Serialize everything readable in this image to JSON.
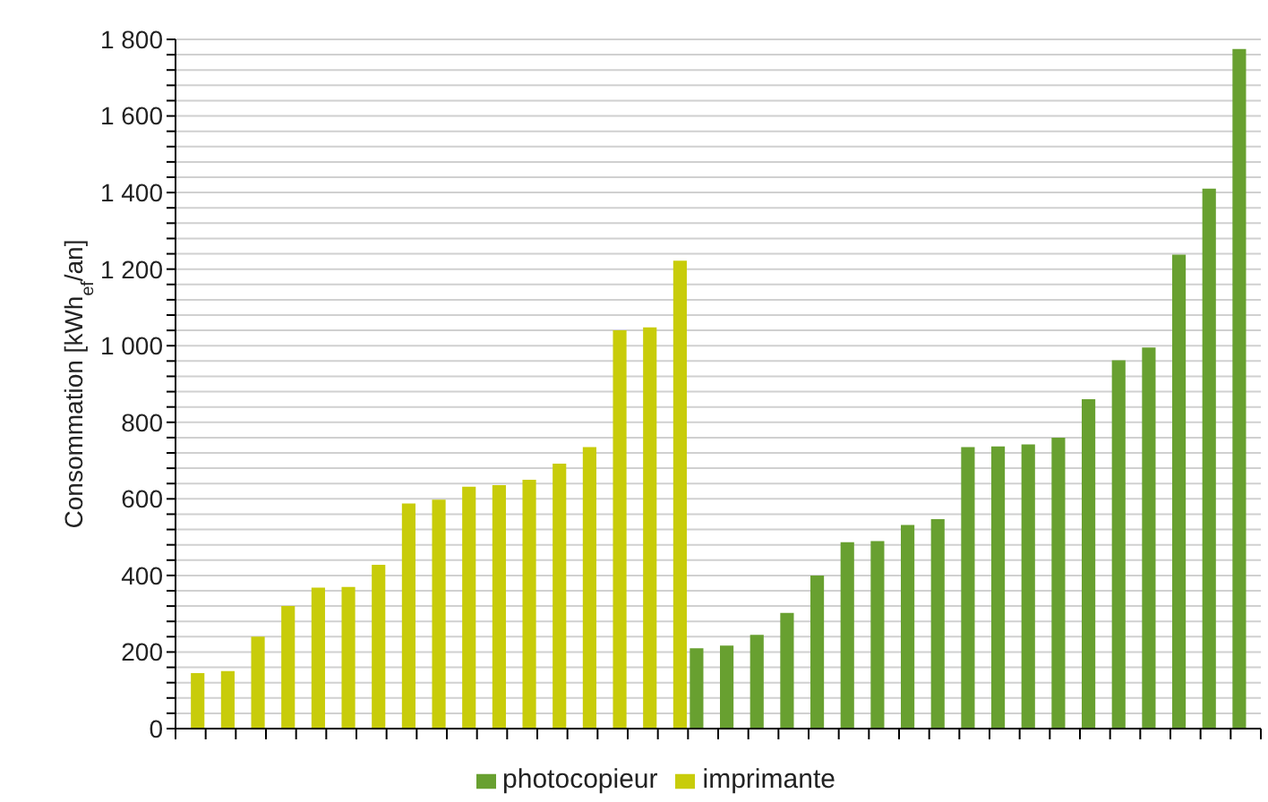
{
  "chart_data": {
    "type": "bar",
    "ylabel": "Consommation [kWh$_{ef}$/an]",
    "categories": [
      null,
      null,
      null,
      null,
      null,
      null,
      null,
      null,
      null,
      null,
      null,
      null,
      null,
      null,
      null,
      null,
      null,
      null,
      null,
      null,
      null,
      null,
      null,
      null,
      null,
      null,
      null,
      null,
      null,
      null,
      null,
      null,
      null,
      null,
      null,
      null
    ],
    "series": [
      {
        "name": "photocopieur",
        "color": "#68a030",
        "values": [
          null,
          null,
          null,
          null,
          null,
          null,
          null,
          null,
          null,
          null,
          null,
          null,
          null,
          null,
          null,
          null,
          null,
          210,
          217,
          245,
          302,
          400,
          487,
          490,
          532,
          547,
          735,
          737,
          742,
          760,
          860,
          962,
          995,
          1238,
          1410,
          1775
        ]
      },
      {
        "name": "imprimante",
        "color": "#c8cc0a",
        "values": [
          145,
          150,
          240,
          320,
          368,
          370,
          428,
          588,
          598,
          632,
          636,
          650,
          692,
          735,
          1040,
          1048,
          1222,
          null,
          null,
          null,
          null,
          null,
          null,
          null,
          null,
          null,
          null,
          null,
          null,
          null,
          null,
          null,
          null,
          null,
          null,
          null
        ]
      }
    ],
    "ylim": [
      0,
      1800
    ],
    "yticks": [
      0,
      {
        "value": 40,
        "label": null
      },
      {
        "value": 80,
        "label": null
      },
      {
        "value": 120,
        "label": null
      },
      {
        "value": 160,
        "label": null
      },
      200,
      {
        "value": 240,
        "label": null
      },
      {
        "value": 280,
        "label": null
      },
      {
        "value": 320,
        "label": null
      },
      {
        "value": 360,
        "label": null
      },
      400,
      {
        "value": 440,
        "label": null
      },
      {
        "value": 480,
        "label": null
      },
      {
        "value": 520,
        "label": null
      },
      {
        "value": 560,
        "label": null
      },
      600,
      {
        "value": 640,
        "label": null
      },
      {
        "value": 680,
        "label": null
      },
      {
        "value": 720,
        "label": null
      },
      {
        "value": 760,
        "label": null
      },
      800,
      {
        "value": 840,
        "label": null
      },
      {
        "value": 880,
        "label": null
      },
      {
        "value": 920,
        "label": null
      },
      {
        "value": 960,
        "label": null
      },
      {
        "value": 1000,
        "label": "1 000"
      },
      {
        "value": 1040,
        "label": null
      },
      {
        "value": 1080,
        "label": null
      },
      {
        "value": 1120,
        "label": null
      },
      {
        "value": 1160,
        "label": null
      },
      {
        "value": 1200,
        "label": "1 200"
      },
      {
        "value": 1240,
        "label": null
      },
      {
        "value": 1280,
        "label": null
      },
      {
        "value": 1320,
        "label": null
      },
      {
        "value": 1360,
        "label": null
      },
      {
        "value": 1400,
        "label": "1 400"
      },
      {
        "value": 1440,
        "label": null
      },
      {
        "value": 1480,
        "label": null
      },
      {
        "value": 1520,
        "label": null
      },
      {
        "value": 1560,
        "label": null
      },
      {
        "value": 1600,
        "label": "1 600"
      },
      {
        "value": 1640,
        "label": null
      },
      {
        "value": 1680,
        "label": null
      },
      {
        "value": 1720,
        "label": null
      },
      {
        "value": 1760,
        "label": null
      },
      {
        "value": 1800,
        "label": "1 800"
      }
    ],
    "grid": "y",
    "legend": "bottom"
  }
}
